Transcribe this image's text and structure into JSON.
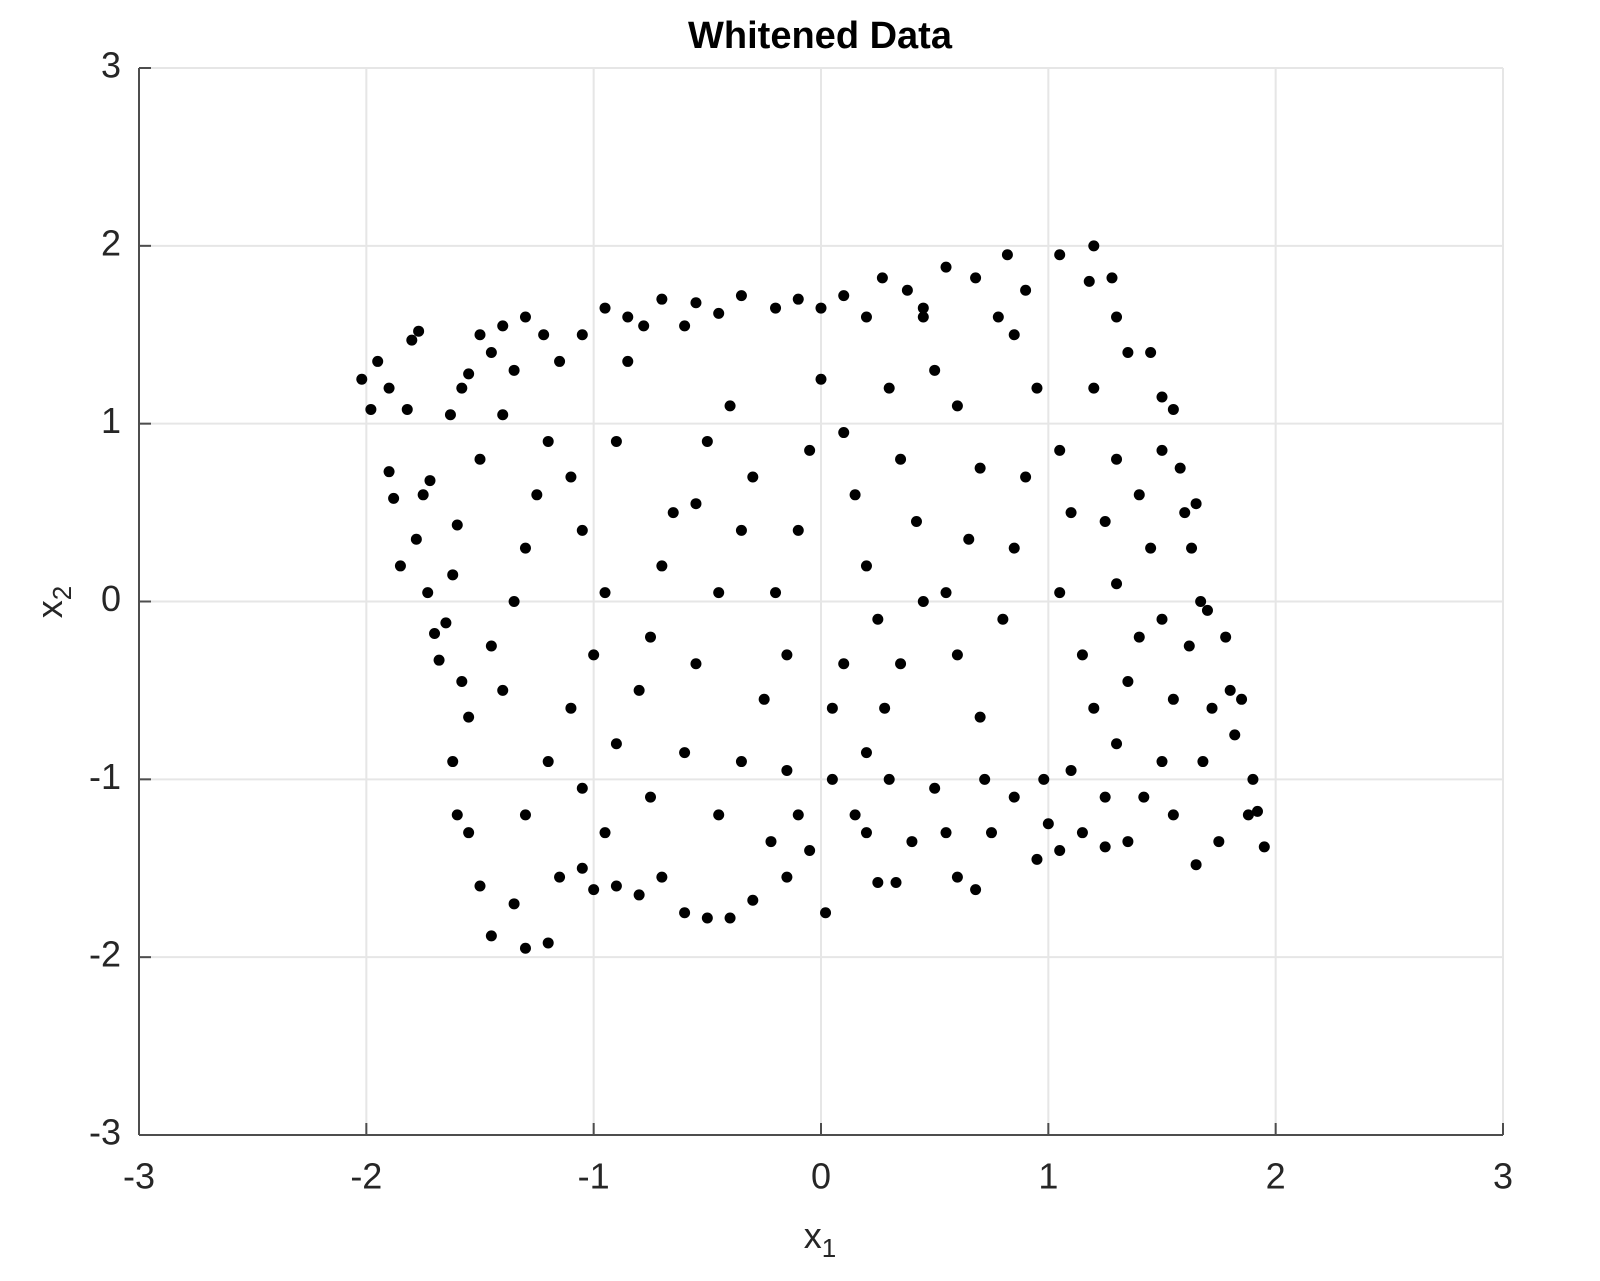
{
  "chart_data": {
    "type": "scatter",
    "title": "Whitened Data",
    "x_label": {
      "base": "x",
      "subscript": "1"
    },
    "y_label": {
      "base": "x",
      "subscript": "2"
    },
    "xlim": [
      -3,
      3
    ],
    "ylim": [
      -3,
      3
    ],
    "xticks": [
      -3,
      -2,
      -1,
      0,
      1,
      2,
      3
    ],
    "yticks": [
      -3,
      -2,
      -1,
      0,
      1,
      2,
      3
    ],
    "grid": true,
    "color": "#000000",
    "x": [
      -2.02,
      -1.98,
      -1.95,
      -1.9,
      -1.82,
      -1.8,
      -1.77,
      -1.9,
      -1.88,
      -1.78,
      -1.75,
      -1.72,
      -1.73,
      -1.7,
      -1.68,
      -1.65,
      -1.62,
      -1.6,
      -1.63,
      -1.58,
      -1.55,
      -1.5,
      -1.45,
      -1.4,
      -1.35,
      -1.3,
      -1.22,
      -1.15,
      -1.05,
      -0.95,
      -0.85,
      -0.78,
      -0.7,
      -0.6,
      -0.55,
      -0.45,
      -0.35,
      -0.2,
      -0.1,
      0.0,
      0.1,
      0.2,
      0.27,
      0.38,
      0.45,
      0.55,
      0.68,
      0.78,
      0.82,
      0.9,
      1.05,
      1.2,
      1.18,
      1.28,
      1.3,
      1.35,
      1.45,
      1.5,
      1.55,
      1.5,
      1.58,
      1.6,
      1.65,
      1.63,
      1.67,
      1.7,
      1.62,
      1.78,
      1.8,
      1.72,
      1.85,
      1.82,
      1.9,
      1.88,
      1.95,
      1.92,
      1.75,
      1.68,
      1.65,
      1.55,
      1.5,
      1.42,
      1.35,
      1.25,
      1.15,
      1.05,
      1.0,
      0.98,
      0.95,
      0.85,
      0.75,
      0.68,
      0.6,
      0.55,
      0.5,
      0.4,
      0.33,
      0.25,
      0.2,
      0.15,
      0.05,
      0.02,
      -0.05,
      -0.1,
      -0.15,
      -0.22,
      -0.3,
      -0.4,
      -0.5,
      -0.6,
      -0.7,
      -0.8,
      -0.9,
      -1.0,
      -1.05,
      -1.15,
      -1.2,
      -1.3,
      -1.35,
      -1.45,
      -1.5,
      -1.55,
      -1.6,
      -1.62,
      -1.55,
      -1.58,
      -1.45,
      -1.4,
      -1.35,
      -1.3,
      -1.25,
      -1.2,
      -1.1,
      -1.05,
      -0.95,
      -1.0,
      -1.1,
      -1.2,
      -1.3,
      -1.05,
      -0.9,
      -0.8,
      -0.75,
      -0.7,
      -0.65,
      -0.55,
      -0.5,
      -0.4,
      -0.3,
      -0.35,
      -0.45,
      -0.55,
      -0.6,
      -0.45,
      -0.35,
      -0.25,
      -0.15,
      -0.2,
      -0.1,
      -0.05,
      0.0,
      0.1,
      0.15,
      0.2,
      0.25,
      0.1,
      0.05,
      0.2,
      0.3,
      0.28,
      0.35,
      0.45,
      0.42,
      0.35,
      0.3,
      0.5,
      0.6,
      0.7,
      0.65,
      0.55,
      0.6,
      0.7,
      0.72,
      0.8,
      0.85,
      0.9,
      0.95,
      1.05,
      1.1,
      1.05,
      1.15,
      1.2,
      1.1,
      1.3,
      1.35,
      1.4,
      1.3,
      1.25,
      1.3,
      1.2,
      1.4,
      1.45,
      1.5,
      1.55,
      1.25,
      -1.85,
      -1.5,
      -1.4,
      -0.85,
      -0.9,
      0.45,
      0.85,
      -0.95,
      -0.75,
      -0.15
    ],
    "y": [
      1.25,
      1.08,
      1.35,
      1.2,
      1.08,
      1.47,
      1.52,
      0.73,
      0.58,
      0.35,
      0.6,
      0.68,
      0.05,
      -0.18,
      -0.33,
      -0.12,
      0.15,
      0.43,
      1.05,
      1.2,
      1.28,
      1.5,
      1.4,
      1.55,
      1.3,
      1.6,
      1.5,
      1.35,
      1.5,
      1.65,
      1.6,
      1.55,
      1.7,
      1.55,
      1.68,
      1.62,
      1.72,
      1.65,
      1.7,
      1.65,
      1.72,
      1.6,
      1.82,
      1.75,
      1.65,
      1.88,
      1.82,
      1.6,
      1.95,
      1.75,
      1.95,
      2.0,
      1.8,
      1.82,
      1.6,
      1.4,
      1.4,
      1.15,
      1.08,
      0.85,
      0.75,
      0.5,
      0.55,
      0.3,
      0.0,
      -0.05,
      -0.25,
      -0.2,
      -0.5,
      -0.6,
      -0.55,
      -0.75,
      -1.0,
      -1.2,
      -1.38,
      -1.18,
      -1.35,
      -0.9,
      -1.48,
      -1.2,
      -0.9,
      -1.1,
      -1.35,
      -1.38,
      -1.3,
      -1.4,
      -1.25,
      -1.0,
      -1.45,
      -1.1,
      -1.3,
      -1.62,
      -1.55,
      -1.3,
      -1.05,
      -1.35,
      -1.58,
      -1.58,
      -1.3,
      -1.2,
      -1.0,
      -1.75,
      -1.4,
      -1.2,
      -1.55,
      -1.35,
      -1.68,
      -1.78,
      -1.78,
      -1.75,
      -1.55,
      -1.65,
      -1.6,
      -1.62,
      -1.5,
      -1.55,
      -1.92,
      -1.95,
      -1.7,
      -1.88,
      -1.6,
      -1.3,
      -1.2,
      -0.9,
      -0.65,
      -0.45,
      -0.25,
      -0.5,
      0.0,
      0.3,
      0.6,
      0.9,
      0.7,
      0.4,
      0.05,
      -0.3,
      -0.6,
      -0.9,
      -1.2,
      -1.05,
      -0.8,
      -0.5,
      -0.2,
      0.2,
      0.5,
      0.55,
      0.9,
      1.1,
      0.7,
      0.4,
      0.05,
      -0.35,
      -0.85,
      -1.2,
      -0.9,
      -0.55,
      -0.3,
      0.05,
      0.4,
      0.85,
      1.25,
      0.95,
      0.6,
      0.2,
      -0.1,
      -0.35,
      -0.6,
      -0.85,
      -1.0,
      -0.6,
      -0.35,
      0.0,
      0.45,
      0.8,
      1.2,
      1.3,
      1.1,
      0.75,
      0.35,
      0.05,
      -0.3,
      -0.65,
      -1.0,
      -0.1,
      0.3,
      0.7,
      1.2,
      0.85,
      0.5,
      0.05,
      -0.3,
      -0.6,
      -0.95,
      -0.8,
      -0.45,
      -0.2,
      0.1,
      0.45,
      0.8,
      1.2,
      0.6,
      0.3,
      -0.1,
      -0.55,
      -1.1,
      0.2,
      0.8,
      1.05,
      1.35,
      0.9,
      1.6,
      1.5,
      -1.3,
      -1.1,
      -0.95
    ]
  }
}
